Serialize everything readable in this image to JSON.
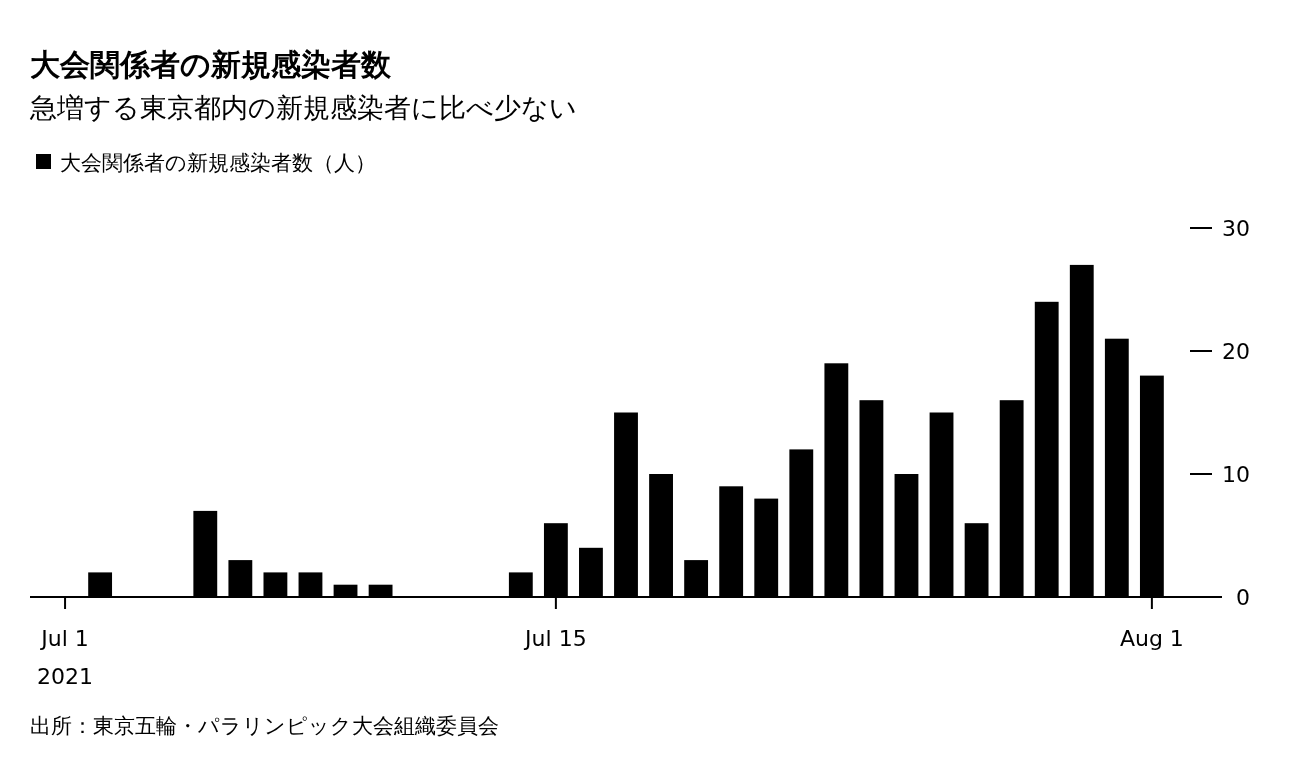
{
  "chart_data": {
    "type": "bar",
    "title": "大会関係者の新規感染者数",
    "subtitle": "急増する東京都内の新規感染者に比べ少ない",
    "x": [
      "2021-07-01",
      "2021-07-02",
      "2021-07-03",
      "2021-07-04",
      "2021-07-05",
      "2021-07-06",
      "2021-07-07",
      "2021-07-08",
      "2021-07-09",
      "2021-07-10",
      "2021-07-11",
      "2021-07-12",
      "2021-07-13",
      "2021-07-14",
      "2021-07-15",
      "2021-07-16",
      "2021-07-17",
      "2021-07-18",
      "2021-07-19",
      "2021-07-20",
      "2021-07-21",
      "2021-07-22",
      "2021-07-23",
      "2021-07-24",
      "2021-07-25",
      "2021-07-26",
      "2021-07-27",
      "2021-07-28",
      "2021-07-29",
      "2021-07-30",
      "2021-07-31",
      "2021-08-01"
    ],
    "series": [
      {
        "name": "大会関係者の新規感染者数（人）",
        "color": "#000000",
        "values": [
          0,
          2,
          0,
          0,
          7,
          3,
          2,
          2,
          1,
          1,
          0,
          0,
          0,
          2,
          6,
          4,
          15,
          10,
          3,
          9,
          8,
          12,
          19,
          16,
          10,
          15,
          6,
          16,
          24,
          27,
          21,
          18
        ]
      }
    ],
    "xlim": [
      "2021-06-30",
      "2021-08-03"
    ],
    "xticks": [
      {
        "value": "2021-07-01",
        "label": "Jul 1\n2021"
      },
      {
        "value": "2021-07-15",
        "label": "Jul 15"
      },
      {
        "value": "2021-08-01",
        "label": "Aug 1"
      }
    ],
    "ylim": [
      0,
      30
    ],
    "yticks": [
      0,
      10,
      20,
      30
    ],
    "legend": "top left",
    "grid": false,
    "annotations": [
      "出所：東京五輪・パラリンピック大会組織委員会"
    ]
  }
}
